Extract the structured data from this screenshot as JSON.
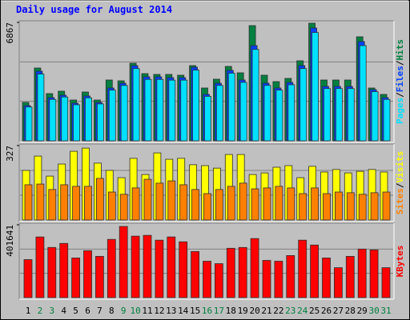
{
  "chart_data": [
    {
      "type": "bar",
      "title": "Daily usage for August 2014",
      "legend_separator": "/",
      "ylim": [
        0,
        6867
      ],
      "yticks": [
        6867
      ],
      "series": [
        {
          "name": "Hits",
          "color": "#008040",
          "values": [
            2227,
            4222,
            2737,
            2877,
            2366,
            2830,
            2366,
            3526,
            3480,
            4500,
            3897,
            3851,
            3851,
            3805,
            4361,
            3062,
            3573,
            4315,
            3944,
            6681,
            3805,
            3433,
            3619,
            4640,
            6820,
            3526,
            3526,
            3526,
            6032,
            3062,
            2691
          ]
        },
        {
          "name": "Files",
          "color": "#0040FF",
          "values": [
            2042,
            4037,
            2506,
            2645,
            2181,
            2598,
            2227,
            3062,
            3341,
            4362,
            3712,
            3712,
            3666,
            3666,
            4269,
            2691,
            3341,
            4083,
            3526,
            5522,
            3341,
            3062,
            3387,
            4362,
            6542,
            3155,
            3155,
            3155,
            5754,
            2970,
            2506
          ]
        },
        {
          "name": "Pages",
          "color": "#00E0FF",
          "values": [
            1960,
            3870,
            2400,
            2540,
            2090,
            2490,
            2140,
            2940,
            3210,
            4190,
            3560,
            3560,
            3520,
            3520,
            4100,
            2580,
            3210,
            3920,
            3390,
            5300,
            3210,
            2940,
            3250,
            4190,
            6280,
            3030,
            3030,
            3030,
            5520,
            2850,
            2400
          ]
        }
      ]
    },
    {
      "type": "bar",
      "legend_separator": "/",
      "ylim": [
        0,
        327
      ],
      "yticks": [
        327
      ],
      "series": [
        {
          "name": "Visits",
          "color": "#FFFF00",
          "values": [
            218,
            281,
            193,
            246,
            302,
            316,
            250,
            218,
            186,
            271,
            200,
            295,
            267,
            271,
            243,
            239,
            228,
            288,
            288,
            200,
            207,
            232,
            239,
            186,
            236,
            211,
            222,
            207,
            214,
            222,
            211
          ]
        },
        {
          "name": "Sites",
          "color": "#FF8000",
          "values": [
            155,
            158,
            134,
            155,
            148,
            148,
            183,
            123,
            113,
            141,
            179,
            162,
            172,
            155,
            134,
            116,
            134,
            148,
            162,
            137,
            141,
            148,
            141,
            116,
            141,
            116,
            123,
            120,
            113,
            120,
            123
          ]
        }
      ]
    },
    {
      "type": "bar",
      "ylim": [
        0,
        401641
      ],
      "yticks": [
        401641
      ],
      "categories": [
        "1",
        "2",
        "3",
        "4",
        "5",
        "6",
        "7",
        "8",
        "9",
        "10",
        "11",
        "12",
        "13",
        "14",
        "15",
        "16",
        "17",
        "18",
        "19",
        "20",
        "21",
        "22",
        "23",
        "24",
        "25",
        "26",
        "27",
        "28",
        "29",
        "30",
        "31"
      ],
      "category_colors": [
        "#000000",
        "#008040",
        "#008040",
        "#000000",
        "#000000",
        "#000000",
        "#000000",
        "#000000",
        "#008040",
        "#008040",
        "#000000",
        "#000000",
        "#000000",
        "#000000",
        "#000000",
        "#008040",
        "#008040",
        "#000000",
        "#000000",
        "#000000",
        "#000000",
        "#000000",
        "#008040",
        "#008040",
        "#000000",
        "#000000",
        "#000000",
        "#000000",
        "#000000",
        "#008040",
        "#008040"
      ],
      "series": [
        {
          "name": "KBytes",
          "color": "#FF0000",
          "values": [
            209750,
            334700,
            276700,
            299000,
            218700,
            258800,
            227600,
            321300,
            392700,
            339200,
            343600,
            316900,
            334700,
            307900,
            254400,
            200800,
            187400,
            272200,
            276700,
            325800,
            205300,
            200800,
            232100,
            316900,
            290100,
            218700,
            165100,
            227600,
            267800,
            263300,
            165100
          ]
        }
      ]
    }
  ]
}
